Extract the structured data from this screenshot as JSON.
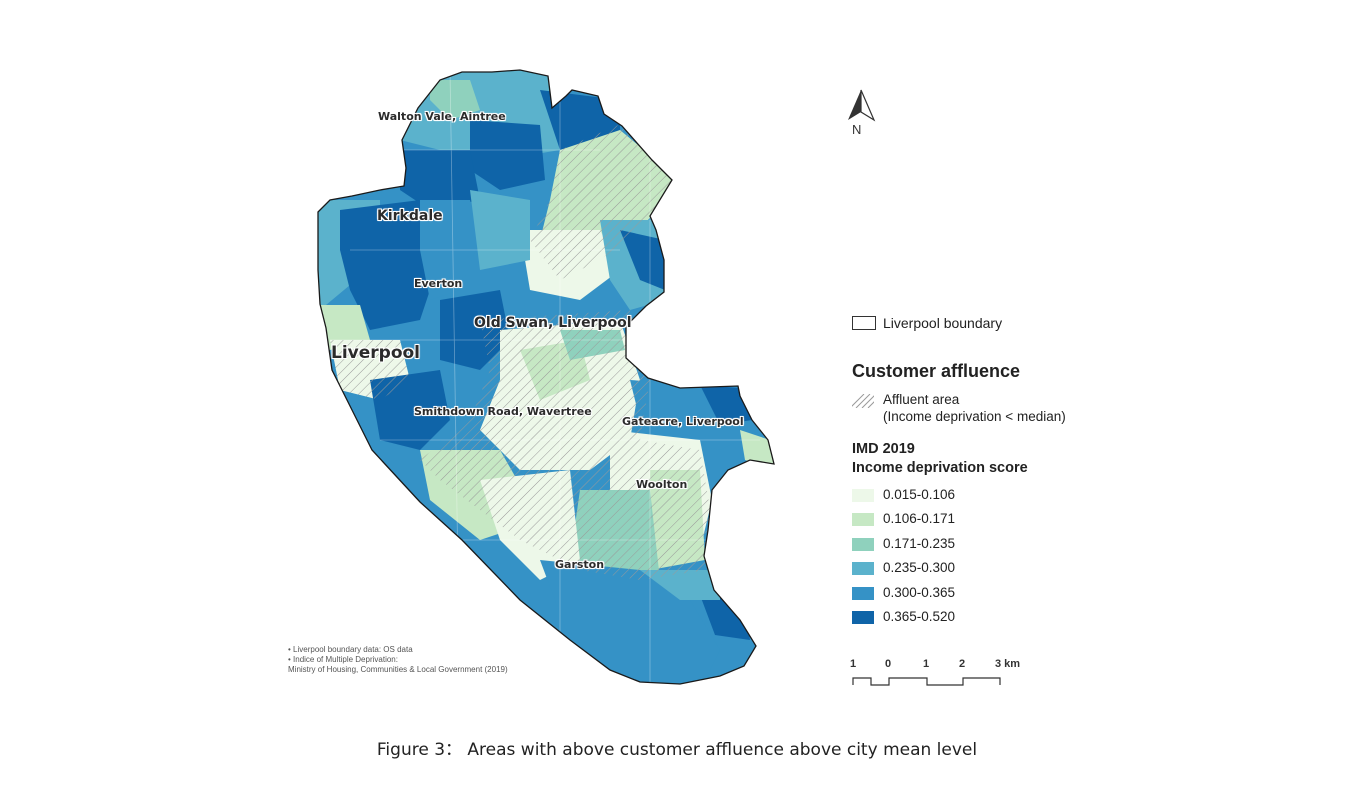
{
  "map": {
    "place_labels": {
      "walton": "Walton Vale, Aintree",
      "kirkdale": "Kirkdale",
      "everton": "Everton",
      "old_swan": "Old Swan, Liverpool",
      "liverpool": "Liverpool",
      "smithdown": "Smithdown Road, Wavertree",
      "gateacre": "Gateacre, Liverpool",
      "woolton": "Woolton",
      "garston": "Garston"
    },
    "north_letter": "N"
  },
  "legend": {
    "boundary_label": "Liverpool boundary",
    "title": "Customer affluence",
    "affluent_line1": "Affluent area",
    "affluent_line2": "(Income deprivation < median)",
    "imd_line1": "IMD 2019",
    "imd_line2": "Income deprivation score",
    "bins": [
      {
        "label": "0.015-0.106",
        "color": "#edf8e9"
      },
      {
        "label": "0.106-0.171",
        "color": "#c6e8c4"
      },
      {
        "label": "0.171-0.235",
        "color": "#8fd1bd"
      },
      {
        "label": "0.235-0.300",
        "color": "#5bb2cc"
      },
      {
        "label": "0.300-0.365",
        "color": "#3592c6"
      },
      {
        "label": "0.365-0.520",
        "color": "#0f64a8"
      }
    ],
    "hatch_color": "#9a9a9a"
  },
  "scale_bar": {
    "ticks": [
      "1",
      "0",
      "1",
      "2",
      "3 km"
    ]
  },
  "sources": {
    "line1": "• Liverpool boundary data: OS data",
    "line2": "• Indice of Multiple Deprivation:",
    "line3": "Ministry of Housing, Communities & Local Government (2019)"
  },
  "caption": "Figure 3：  Areas with above customer affluence above city mean level"
}
